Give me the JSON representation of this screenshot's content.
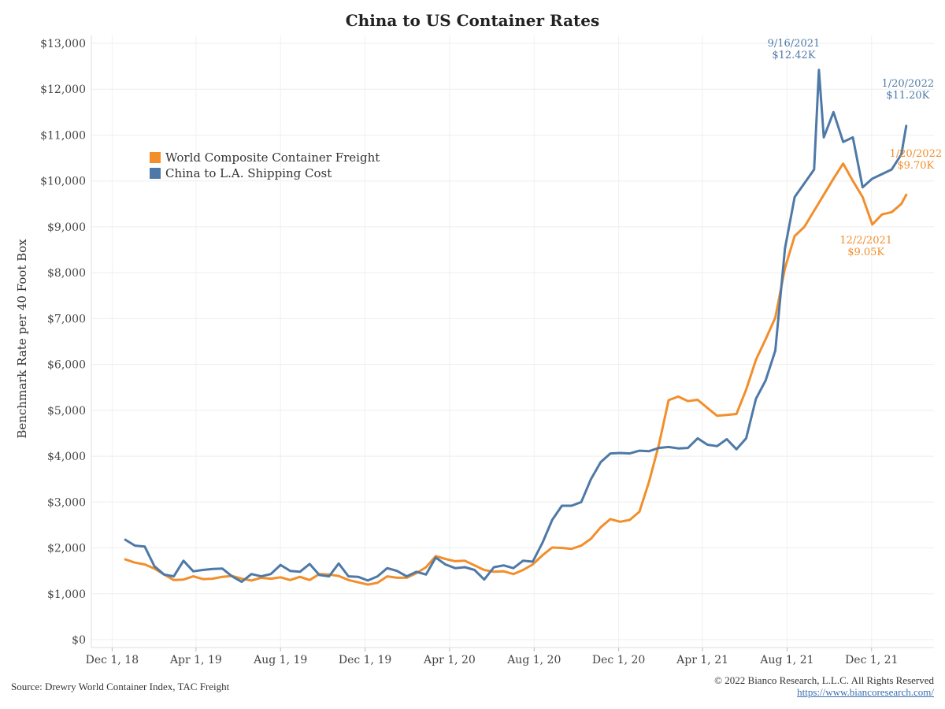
{
  "chart_data": {
    "type": "line",
    "title": "China to US Container Rates",
    "xlabel": "",
    "ylabel": "Benchmark Rate per 40 Foot Box",
    "ylim": [
      0,
      13000
    ],
    "y_ticks": [
      0,
      1000,
      2000,
      3000,
      4000,
      5000,
      6000,
      7000,
      8000,
      9000,
      10000,
      11000,
      12000,
      13000
    ],
    "y_tick_labels": [
      "$0",
      "$1,000",
      "$2,000",
      "$3,000",
      "$4,000",
      "$5,000",
      "$6,000",
      "$7,000",
      "$8,000",
      "$9,000",
      "$10,000",
      "$11,000",
      "$12,000",
      "$13,000"
    ],
    "x_ticks": [
      "2018-12-01",
      "2019-04-01",
      "2019-08-01",
      "2019-12-01",
      "2020-04-01",
      "2020-08-01",
      "2020-12-01",
      "2021-04-01",
      "2021-08-01",
      "2021-12-01"
    ],
    "x_tick_labels": [
      "Dec 1, 18",
      "Apr 1, 19",
      "Aug 1, 19",
      "Dec 1, 19",
      "Apr 1, 20",
      "Aug 1, 20",
      "Dec 1, 20",
      "Apr 1, 21",
      "Aug 1, 21",
      "Dec 1, 21"
    ],
    "xlim": [
      "2018-11-01",
      "2022-03-01"
    ],
    "grid": true,
    "legend_position": "upper-left",
    "series": [
      {
        "name": "World Composite Container Freight",
        "color": "#f28e2b",
        "points": [
          [
            "2018-12-20",
            1750
          ],
          [
            "2019-01-03",
            1680
          ],
          [
            "2019-01-17",
            1640
          ],
          [
            "2019-01-31",
            1550
          ],
          [
            "2019-02-14",
            1420
          ],
          [
            "2019-02-28",
            1300
          ],
          [
            "2019-03-14",
            1310
          ],
          [
            "2019-03-28",
            1380
          ],
          [
            "2019-04-11",
            1320
          ],
          [
            "2019-04-25",
            1330
          ],
          [
            "2019-05-09",
            1370
          ],
          [
            "2019-05-23",
            1390
          ],
          [
            "2019-06-06",
            1330
          ],
          [
            "2019-06-20",
            1290
          ],
          [
            "2019-07-04",
            1350
          ],
          [
            "2019-07-18",
            1330
          ],
          [
            "2019-08-01",
            1360
          ],
          [
            "2019-08-15",
            1300
          ],
          [
            "2019-08-29",
            1370
          ],
          [
            "2019-09-12",
            1300
          ],
          [
            "2019-09-26",
            1430
          ],
          [
            "2019-10-10",
            1420
          ],
          [
            "2019-10-24",
            1390
          ],
          [
            "2019-11-07",
            1300
          ],
          [
            "2019-11-21",
            1250
          ],
          [
            "2019-12-05",
            1200
          ],
          [
            "2019-12-19",
            1240
          ],
          [
            "2020-01-02",
            1380
          ],
          [
            "2020-01-16",
            1350
          ],
          [
            "2020-01-30",
            1350
          ],
          [
            "2020-02-13",
            1450
          ],
          [
            "2020-02-27",
            1580
          ],
          [
            "2020-03-12",
            1820
          ],
          [
            "2020-03-26",
            1760
          ],
          [
            "2020-04-09",
            1710
          ],
          [
            "2020-04-23",
            1720
          ],
          [
            "2020-05-07",
            1620
          ],
          [
            "2020-05-21",
            1520
          ],
          [
            "2020-06-04",
            1480
          ],
          [
            "2020-06-18",
            1490
          ],
          [
            "2020-07-02",
            1430
          ],
          [
            "2020-07-16",
            1520
          ],
          [
            "2020-07-30",
            1640
          ],
          [
            "2020-08-13",
            1840
          ],
          [
            "2020-08-27",
            2010
          ],
          [
            "2020-09-10",
            2000
          ],
          [
            "2020-09-24",
            1980
          ],
          [
            "2020-10-08",
            2050
          ],
          [
            "2020-10-22",
            2200
          ],
          [
            "2020-11-05",
            2450
          ],
          [
            "2020-11-19",
            2630
          ],
          [
            "2020-12-03",
            2570
          ],
          [
            "2020-12-17",
            2610
          ],
          [
            "2020-12-31",
            2790
          ],
          [
            "2021-01-14",
            3450
          ],
          [
            "2021-01-28",
            4250
          ],
          [
            "2021-02-11",
            5220
          ],
          [
            "2021-02-25",
            5300
          ],
          [
            "2021-03-11",
            5200
          ],
          [
            "2021-03-25",
            5230
          ],
          [
            "2021-04-08",
            5050
          ],
          [
            "2021-04-22",
            4880
          ],
          [
            "2021-05-06",
            4900
          ],
          [
            "2021-05-20",
            4920
          ],
          [
            "2021-06-03",
            5450
          ],
          [
            "2021-06-17",
            6100
          ],
          [
            "2021-07-01",
            6550
          ],
          [
            "2021-07-15",
            7020
          ],
          [
            "2021-07-29",
            8100
          ],
          [
            "2021-08-12",
            8800
          ],
          [
            "2021-08-26",
            9000
          ],
          [
            "2021-09-09",
            9350
          ],
          [
            "2021-09-23",
            9700
          ],
          [
            "2021-10-07",
            10050
          ],
          [
            "2021-10-21",
            10380
          ],
          [
            "2021-11-04",
            10000
          ],
          [
            "2021-11-18",
            9650
          ],
          [
            "2021-12-02",
            9050
          ],
          [
            "2021-12-16",
            9270
          ],
          [
            "2021-12-30",
            9320
          ],
          [
            "2022-01-13",
            9500
          ],
          [
            "2022-01-20",
            9700
          ]
        ]
      },
      {
        "name": "China to L.A. Shipping Cost",
        "color": "#4e79a7",
        "points": [
          [
            "2018-12-20",
            2180
          ],
          [
            "2019-01-03",
            2050
          ],
          [
            "2019-01-17",
            2030
          ],
          [
            "2019-01-31",
            1600
          ],
          [
            "2019-02-14",
            1420
          ],
          [
            "2019-02-28",
            1380
          ],
          [
            "2019-03-14",
            1720
          ],
          [
            "2019-03-28",
            1490
          ],
          [
            "2019-04-11",
            1520
          ],
          [
            "2019-04-25",
            1540
          ],
          [
            "2019-05-09",
            1550
          ],
          [
            "2019-05-23",
            1380
          ],
          [
            "2019-06-06",
            1260
          ],
          [
            "2019-06-20",
            1430
          ],
          [
            "2019-07-04",
            1380
          ],
          [
            "2019-07-18",
            1430
          ],
          [
            "2019-08-01",
            1630
          ],
          [
            "2019-08-15",
            1500
          ],
          [
            "2019-08-29",
            1480
          ],
          [
            "2019-09-12",
            1650
          ],
          [
            "2019-09-26",
            1410
          ],
          [
            "2019-10-10",
            1380
          ],
          [
            "2019-10-24",
            1660
          ],
          [
            "2019-11-07",
            1380
          ],
          [
            "2019-11-21",
            1370
          ],
          [
            "2019-12-05",
            1290
          ],
          [
            "2019-12-19",
            1380
          ],
          [
            "2020-01-02",
            1560
          ],
          [
            "2020-01-16",
            1500
          ],
          [
            "2020-01-30",
            1380
          ],
          [
            "2020-02-13",
            1480
          ],
          [
            "2020-02-27",
            1420
          ],
          [
            "2020-03-12",
            1790
          ],
          [
            "2020-03-26",
            1640
          ],
          [
            "2020-04-09",
            1560
          ],
          [
            "2020-04-23",
            1580
          ],
          [
            "2020-05-07",
            1520
          ],
          [
            "2020-05-21",
            1310
          ],
          [
            "2020-06-04",
            1580
          ],
          [
            "2020-06-18",
            1620
          ],
          [
            "2020-07-02",
            1560
          ],
          [
            "2020-07-16",
            1720
          ],
          [
            "2020-07-30",
            1700
          ],
          [
            "2020-08-13",
            2110
          ],
          [
            "2020-08-27",
            2610
          ],
          [
            "2020-09-10",
            2920
          ],
          [
            "2020-09-24",
            2920
          ],
          [
            "2020-10-08",
            3000
          ],
          [
            "2020-10-22",
            3500
          ],
          [
            "2020-11-05",
            3870
          ],
          [
            "2020-11-19",
            4060
          ],
          [
            "2020-12-03",
            4070
          ],
          [
            "2020-12-17",
            4060
          ],
          [
            "2020-12-31",
            4120
          ],
          [
            "2021-01-14",
            4110
          ],
          [
            "2021-01-28",
            4180
          ],
          [
            "2021-02-11",
            4200
          ],
          [
            "2021-02-25",
            4170
          ],
          [
            "2021-03-11",
            4180
          ],
          [
            "2021-03-25",
            4390
          ],
          [
            "2021-04-08",
            4250
          ],
          [
            "2021-04-22",
            4220
          ],
          [
            "2021-05-06",
            4370
          ],
          [
            "2021-05-20",
            4150
          ],
          [
            "2021-06-03",
            4390
          ],
          [
            "2021-06-17",
            5250
          ],
          [
            "2021-07-01",
            5650
          ],
          [
            "2021-07-15",
            6300
          ],
          [
            "2021-07-29",
            8530
          ],
          [
            "2021-08-12",
            9650
          ],
          [
            "2021-08-26",
            9950
          ],
          [
            "2021-09-09",
            10250
          ],
          [
            "2021-09-23",
            10950
          ],
          [
            "2021-10-07",
            11500
          ],
          [
            "2021-09-16",
            12420
          ],
          [
            "2021-10-21",
            10850
          ],
          [
            "2021-11-04",
            10950
          ],
          [
            "2021-11-18",
            9860
          ],
          [
            "2021-12-02",
            10050
          ],
          [
            "2021-12-16",
            10150
          ],
          [
            "2021-12-30",
            10250
          ],
          [
            "2022-01-13",
            10580
          ],
          [
            "2022-01-20",
            11200
          ]
        ]
      }
    ],
    "annotations": [
      {
        "series": "China to L.A. Shipping Cost",
        "x": "2021-09-16",
        "y": 12420,
        "date_label": "9/16/2021",
        "value_label": "$12.42K"
      },
      {
        "series": "China to L.A. Shipping Cost",
        "x": "2022-01-20",
        "y": 11200,
        "date_label": "1/20/2022",
        "value_label": "$11.20K"
      },
      {
        "series": "World Composite Container Freight",
        "x": "2022-01-20",
        "y": 9700,
        "date_label": "1/20/2022",
        "value_label": "$9.70K"
      },
      {
        "series": "World Composite Container Freight",
        "x": "2021-12-02",
        "y": 9050,
        "date_label": "12/2/2021",
        "value_label": "$9.05K"
      }
    ]
  },
  "footer": {
    "source": "Source: Drewry World Container Index, TAC Freight",
    "copyright": "© 2022 Bianco Research, L.L.C. All Rights Reserved",
    "url": "https://www.biancoresearch.com/"
  }
}
